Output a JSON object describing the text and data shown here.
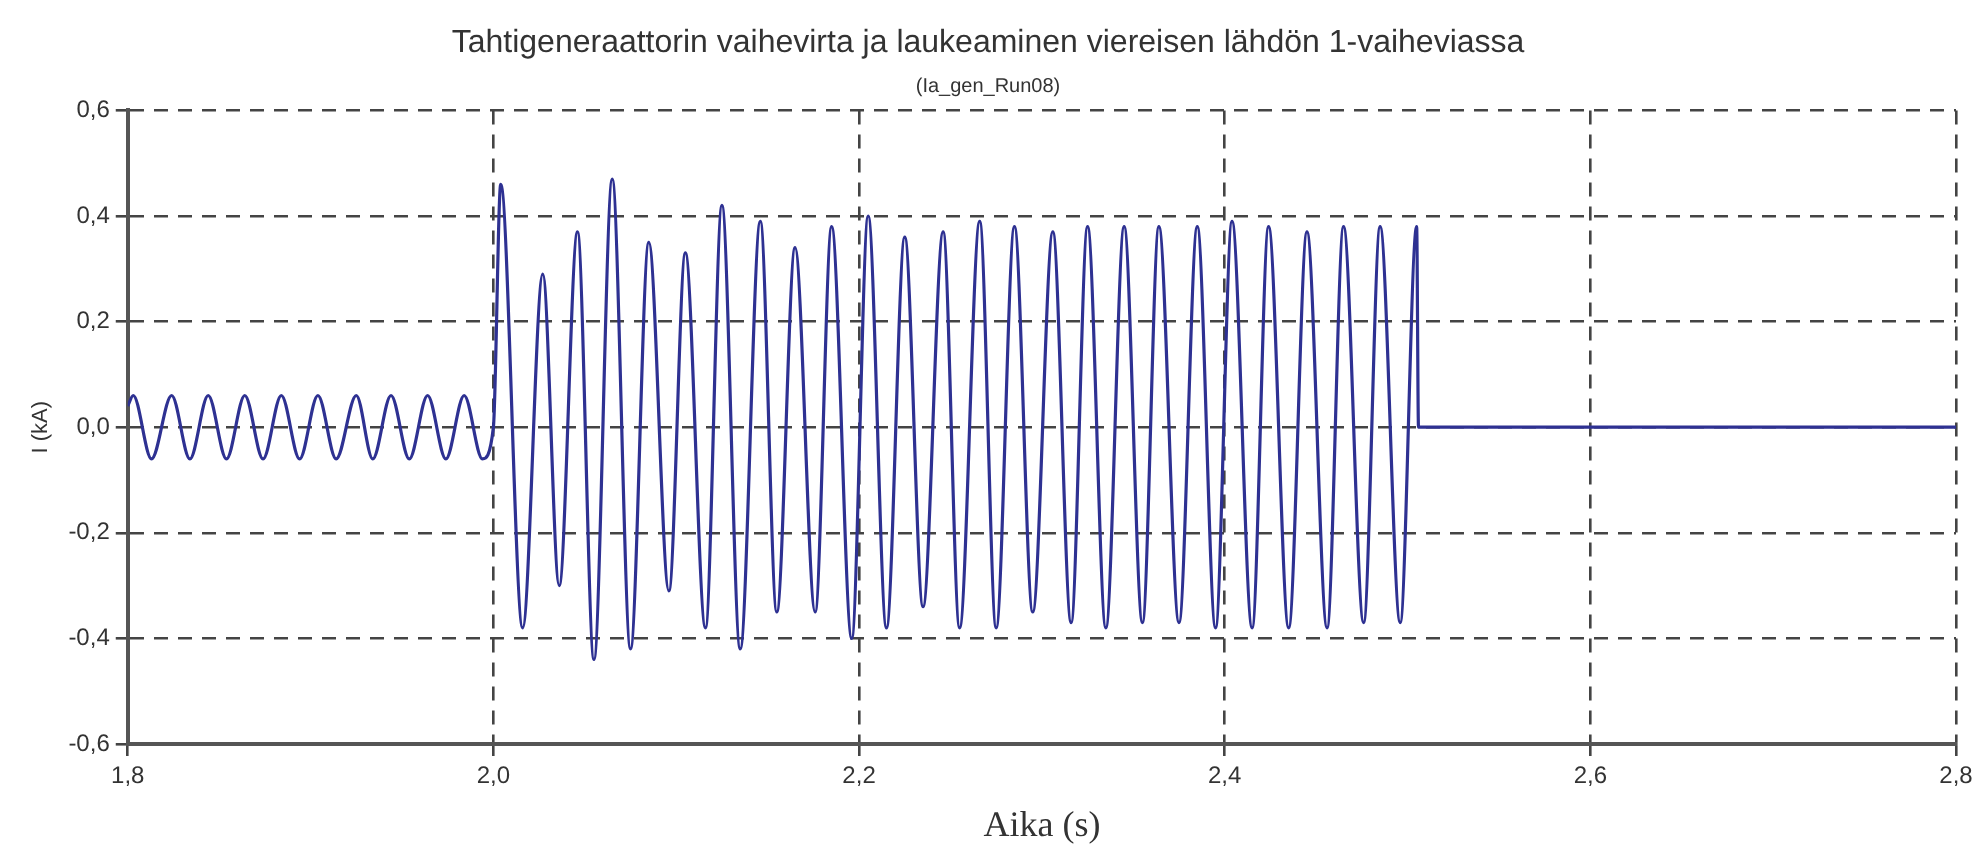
{
  "chart_data": {
    "type": "line",
    "title": "Tahtigeneraattorin vaihevirta ja laukeaminen viereisen lähdön 1-vaiheviassa",
    "subtitle": "(Ia_gen_Run08)",
    "xlabel": "Aika (s)",
    "ylabel": "I (kA)",
    "x": [
      1.8,
      1.803,
      1.813,
      1.824,
      1.834,
      1.844,
      1.854,
      1.864,
      1.874,
      1.884,
      1.894,
      1.904,
      1.914,
      1.925,
      1.934,
      1.944,
      1.954,
      1.964,
      1.974,
      1.984,
      1.994,
      2.0,
      2.004,
      2.016,
      2.027,
      2.036,
      2.046,
      2.055,
      2.065,
      2.075,
      2.085,
      2.096,
      2.105,
      2.116,
      2.125,
      2.135,
      2.146,
      2.155,
      2.165,
      2.176,
      2.185,
      2.196,
      2.205,
      2.215,
      2.225,
      2.235,
      2.246,
      2.255,
      2.266,
      2.275,
      2.285,
      2.295,
      2.306,
      2.316,
      2.325,
      2.335,
      2.345,
      2.355,
      2.364,
      2.375,
      2.385,
      2.395,
      2.404,
      2.415,
      2.424,
      2.435,
      2.445,
      2.456,
      2.465,
      2.476,
      2.485,
      2.496,
      2.505,
      2.506,
      2.8
    ],
    "series": [
      {
        "color": "#2e3192",
        "values": [
          0.04,
          0.06,
          -0.06,
          0.06,
          -0.06,
          0.06,
          -0.06,
          0.06,
          -0.06,
          0.06,
          -0.06,
          0.06,
          -0.06,
          0.06,
          -0.06,
          0.06,
          -0.06,
          0.06,
          -0.06,
          0.06,
          -0.06,
          0,
          0.46,
          -0.38,
          0.29,
          -0.3,
          0.37,
          -0.44,
          0.47,
          -0.42,
          0.35,
          -0.31,
          0.33,
          -0.38,
          0.42,
          -0.42,
          0.39,
          -0.35,
          0.34,
          -0.35,
          0.38,
          -0.4,
          0.4,
          -0.38,
          0.36,
          -0.34,
          0.37,
          -0.38,
          0.39,
          -0.38,
          0.38,
          -0.35,
          0.37,
          -0.37,
          0.38,
          -0.38,
          0.38,
          -0.37,
          0.38,
          -0.37,
          0.38,
          -0.38,
          0.39,
          -0.38,
          0.38,
          -0.38,
          0.37,
          -0.38,
          0.38,
          -0.37,
          0.38,
          -0.37,
          0.38,
          0,
          0
        ]
      }
    ],
    "xlim": [
      1.8,
      2.8
    ],
    "ylim": [
      -0.6,
      0.6
    ],
    "xticks": [
      {
        "value": 1.8,
        "label": "1,8"
      },
      {
        "value": 2.0,
        "label": "2,0"
      },
      {
        "value": 2.2,
        "label": "2,2"
      },
      {
        "value": 2.4,
        "label": "2,4"
      },
      {
        "value": 2.6,
        "label": "2,6"
      },
      {
        "value": 2.8,
        "label": "2,8"
      }
    ],
    "yticks": [
      {
        "value": -0.6,
        "label": "-0,6"
      },
      {
        "value": -0.4,
        "label": "-0,4"
      },
      {
        "value": -0.2,
        "label": "-0,2"
      },
      {
        "value": 0,
        "label": "0,0"
      },
      {
        "value": 0.2,
        "label": "0,2"
      },
      {
        "value": 0.4,
        "label": "0,4"
      },
      {
        "value": 0.6,
        "label": "0,6"
      }
    ],
    "grid": true,
    "legend": false,
    "marker": "none",
    "line_style": "solid"
  }
}
